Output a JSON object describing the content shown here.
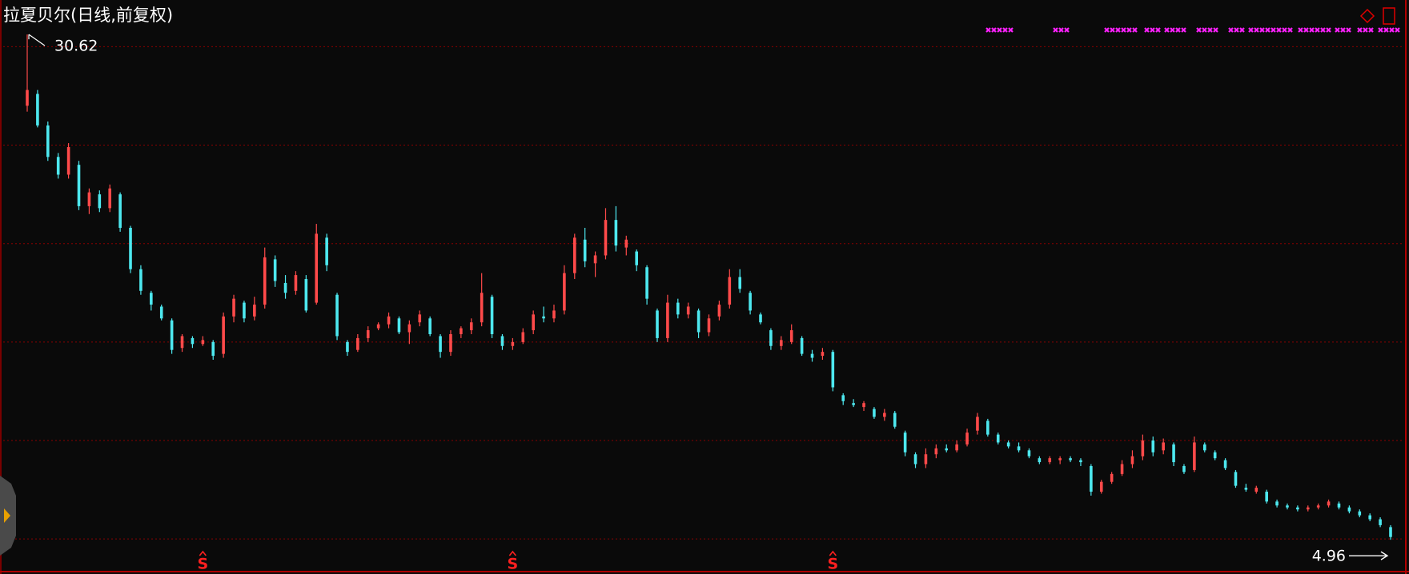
{
  "chart_data": {
    "type": "candlestick",
    "title": "拉夏贝尔(日线,前复权)",
    "up_color": "#ff4a4a",
    "down_color": "#4de8ef",
    "grid": true,
    "ylim": [
      3.22,
      32.37
    ],
    "yticks": [
      5,
      10,
      15,
      20,
      25,
      30
    ],
    "open": [
      27.0,
      27.6,
      26.0,
      24.4,
      23.5,
      24.0,
      21.9,
      22.5,
      21.8,
      22.5,
      20.8,
      18.7,
      17.5,
      16.8,
      16.1,
      14.7,
      15.2,
      14.9,
      15.0,
      14.4,
      16.3,
      17.0,
      16.3,
      16.9,
      19.2,
      18.0,
      17.6,
      18.2,
      17.0,
      20.3,
      17.4,
      15.0,
      14.6,
      15.2,
      15.7,
      15.9,
      16.2,
      15.5,
      16.0,
      16.2,
      15.3,
      14.5,
      15.4,
      15.6,
      16.0,
      17.3,
      15.3,
      14.8,
      15.0,
      15.6,
      16.3,
      16.2,
      16.6,
      18.5,
      20.2,
      19.0,
      19.4,
      21.2,
      19.8,
      19.6,
      18.8,
      16.6,
      15.2,
      17.0,
      16.4,
      16.6,
      15.5,
      16.3,
      16.9,
      18.3,
      17.5,
      16.4,
      15.6,
      14.8,
      15.0,
      15.2,
      14.4,
      14.3,
      14.5,
      12.3,
      11.9,
      11.7,
      11.6,
      11.2,
      11.4,
      10.4,
      9.3,
      8.8,
      9.3,
      9.6,
      9.5,
      9.8,
      10.5,
      11.0,
      10.3,
      9.9,
      9.7,
      9.5,
      9.1,
      8.9,
      9.0,
      9.1,
      9.0,
      8.7,
      7.4,
      7.9,
      8.3,
      8.8,
      9.2,
      10.0,
      9.5,
      9.8,
      8.7,
      8.5,
      9.8,
      9.4,
      9.0,
      8.4,
      7.6,
      7.4,
      7.4,
      6.9,
      6.7,
      6.6,
      6.5,
      6.6,
      6.7,
      6.8,
      6.6,
      6.4,
      6.2,
      6.0,
      5.6
    ],
    "high": [
      30.62,
      27.8,
      26.2,
      24.6,
      25.1,
      24.2,
      22.8,
      22.7,
      23.0,
      22.6,
      20.9,
      18.9,
      17.6,
      16.9,
      16.2,
      15.4,
      15.3,
      15.3,
      15.1,
      16.5,
      17.4,
      17.1,
      17.3,
      19.8,
      19.4,
      18.4,
      18.6,
      18.4,
      21.0,
      20.5,
      17.5,
      15.1,
      15.4,
      15.8,
      16.0,
      16.5,
      16.3,
      16.1,
      16.6,
      16.3,
      15.4,
      15.6,
      15.8,
      16.2,
      18.5,
      17.4,
      15.4,
      15.2,
      15.7,
      16.6,
      16.8,
      16.9,
      18.9,
      20.5,
      20.8,
      19.6,
      21.8,
      21.9,
      20.4,
      19.7,
      18.9,
      16.7,
      17.4,
      17.2,
      17.0,
      16.7,
      16.4,
      17.1,
      18.7,
      18.7,
      17.6,
      16.5,
      15.7,
      15.3,
      15.9,
      15.3,
      14.6,
      14.7,
      14.6,
      12.4,
      12.1,
      12.0,
      11.7,
      11.6,
      11.5,
      10.5,
      9.4,
      9.6,
      9.8,
      9.8,
      10.0,
      10.6,
      11.4,
      11.1,
      10.4,
      10.0,
      9.9,
      9.6,
      9.2,
      9.2,
      9.2,
      9.2,
      9.1,
      8.8,
      8.0,
      8.4,
      9.0,
      9.5,
      10.3,
      10.2,
      10.1,
      9.9,
      8.8,
      10.2,
      9.9,
      9.5,
      9.1,
      8.5,
      7.8,
      7.7,
      7.5,
      7.0,
      6.8,
      6.7,
      6.7,
      6.8,
      7.0,
      6.9,
      6.7,
      6.5,
      6.3,
      6.1,
      5.7
    ],
    "low": [
      26.7,
      25.9,
      24.2,
      23.3,
      23.3,
      21.7,
      21.5,
      21.6,
      21.6,
      20.6,
      18.5,
      17.4,
      16.6,
      16.1,
      14.4,
      14.5,
      14.7,
      14.8,
      14.1,
      14.2,
      16.0,
      16.0,
      16.1,
      16.7,
      17.8,
      17.2,
      17.4,
      16.5,
      16.9,
      18.6,
      15.1,
      14.3,
      14.5,
      15.0,
      15.6,
      15.7,
      15.4,
      14.9,
      15.8,
      15.3,
      14.2,
      14.3,
      15.2,
      15.4,
      15.8,
      15.2,
      14.6,
      14.6,
      14.9,
      15.4,
      16.0,
      16.0,
      16.4,
      18.2,
      18.8,
      18.3,
      19.2,
      19.6,
      19.4,
      18.6,
      16.9,
      15.0,
      15.0,
      16.2,
      16.2,
      15.2,
      15.3,
      16.1,
      16.7,
      17.5,
      16.4,
      15.9,
      14.6,
      14.6,
      14.9,
      14.3,
      14.0,
      14.1,
      12.5,
      11.8,
      11.7,
      11.5,
      11.1,
      11.0,
      10.6,
      9.2,
      8.6,
      8.6,
      9.1,
      9.4,
      9.4,
      9.7,
      10.3,
      10.2,
      9.8,
      9.6,
      9.4,
      9.1,
      8.8,
      8.8,
      8.8,
      8.9,
      8.7,
      7.2,
      7.3,
      7.8,
      8.2,
      8.6,
      9.0,
      9.2,
      9.3,
      8.7,
      8.3,
      8.4,
      9.4,
      9.0,
      8.5,
      7.6,
      7.4,
      7.3,
      6.8,
      6.6,
      6.5,
      6.4,
      6.4,
      6.5,
      6.6,
      6.5,
      6.3,
      6.1,
      5.9,
      5.6,
      4.96
    ],
    "close": [
      27.8,
      26.0,
      24.4,
      23.5,
      24.9,
      21.9,
      22.6,
      21.8,
      22.8,
      20.8,
      18.7,
      17.6,
      16.9,
      16.2,
      14.6,
      15.3,
      14.9,
      15.1,
      14.3,
      16.3,
      17.2,
      16.2,
      16.9,
      19.3,
      18.1,
      17.5,
      18.4,
      16.6,
      20.5,
      18.9,
      15.3,
      14.5,
      15.2,
      15.6,
      15.9,
      16.3,
      15.5,
      15.9,
      16.4,
      15.4,
      14.5,
      15.4,
      15.7,
      16.0,
      17.5,
      15.4,
      14.8,
      15.0,
      15.5,
      16.4,
      16.2,
      16.6,
      18.5,
      20.3,
      19.1,
      19.4,
      21.2,
      19.9,
      20.2,
      18.9,
      17.2,
      15.2,
      17.0,
      16.4,
      16.8,
      15.5,
      16.2,
      16.9,
      18.3,
      17.7,
      16.6,
      16.0,
      14.8,
      15.1,
      15.6,
      14.4,
      14.2,
      14.5,
      12.7,
      12.0,
      11.8,
      11.9,
      11.2,
      11.4,
      10.7,
      9.4,
      8.8,
      9.3,
      9.6,
      9.5,
      9.8,
      10.4,
      11.2,
      10.3,
      9.9,
      9.7,
      9.5,
      9.2,
      8.9,
      9.1,
      9.1,
      9.0,
      8.9,
      7.4,
      7.9,
      8.3,
      8.8,
      9.2,
      10.0,
      9.4,
      9.9,
      8.9,
      8.4,
      9.9,
      9.5,
      9.1,
      8.6,
      7.7,
      7.5,
      7.6,
      6.9,
      6.7,
      6.6,
      6.5,
      6.6,
      6.7,
      6.9,
      6.6,
      6.4,
      6.2,
      6.0,
      5.7,
      5.1
    ],
    "signals": [
      {
        "label": "S",
        "at": 17
      },
      {
        "label": "S",
        "at": 47
      },
      {
        "label": "S",
        "at": 78
      }
    ]
  }
}
